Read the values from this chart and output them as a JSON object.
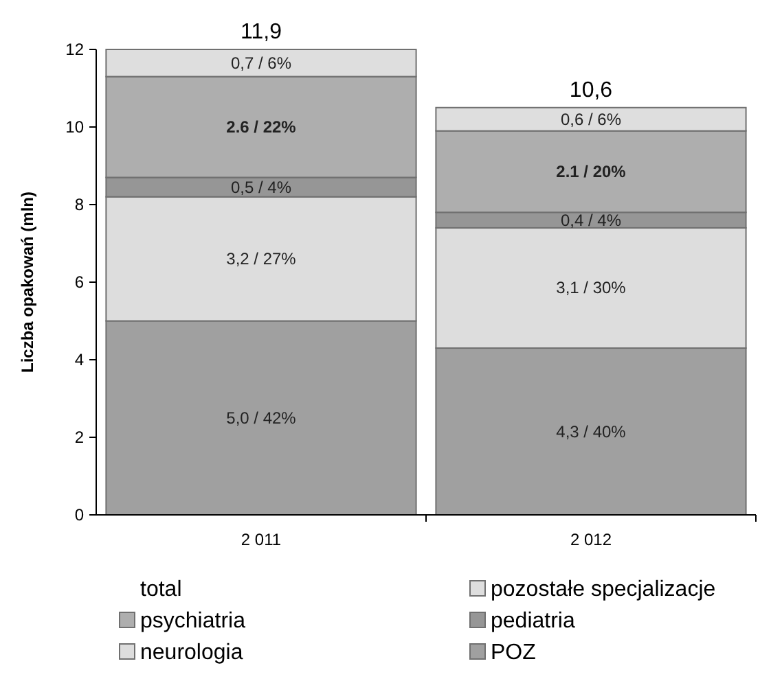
{
  "chart_data": {
    "type": "bar",
    "stacked": true,
    "ylabel": "Liczba opakowań (mln)",
    "categories": [
      "2 011",
      "2 012"
    ],
    "ylim": [
      0,
      12
    ],
    "yticks": [
      0,
      2,
      4,
      6,
      8,
      10,
      12
    ],
    "legend": "bottom",
    "totals": [
      "11,9",
      "10,6"
    ],
    "series": [
      {
        "name": "POZ",
        "color": "#a0a0a0",
        "values": [
          5.0,
          4.3
        ],
        "value_labels": [
          "5,0 / 42%",
          "4,3 / 40%"
        ]
      },
      {
        "name": "neurologia",
        "color": "#dddddd",
        "values": [
          3.2,
          3.1
        ],
        "value_labels": [
          "3,2 / 27%",
          "3,1 / 30%"
        ]
      },
      {
        "name": "pediatria",
        "color": "#969696",
        "values": [
          0.5,
          0.4
        ],
        "value_labels": [
          "0,5 / 4%",
          "0,4 / 4%"
        ]
      },
      {
        "name": "psychiatria",
        "color": "#aeaeae",
        "values": [
          2.6,
          2.1
        ],
        "value_labels": [
          "2.6 / 22%",
          "2.1 / 20%"
        ]
      },
      {
        "name": "pozostałe specjalizacje",
        "color": "#dedede",
        "values": [
          0.7,
          0.6
        ],
        "value_labels": [
          "0,7 / 6%",
          "0,6 / 6%"
        ]
      },
      {
        "name": "total",
        "values": [
          null,
          null
        ]
      }
    ]
  }
}
